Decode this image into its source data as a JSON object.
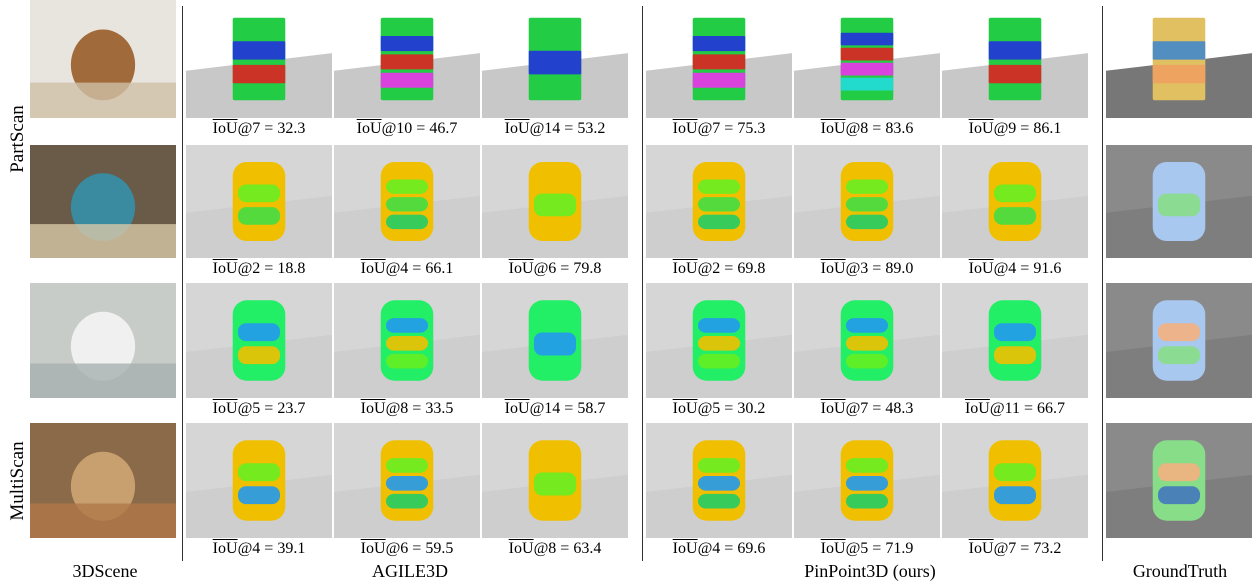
{
  "row_groups": [
    {
      "label": "PartScan"
    },
    {
      "label": "MultiScan"
    }
  ],
  "columns": [
    {
      "label": "3DScene"
    },
    {
      "label": "AGILE3D"
    },
    {
      "label": "PinPoint3D (ours)"
    },
    {
      "label": "GroundTruth"
    }
  ],
  "rows": [
    {
      "captions": [
        {
          "metric": "IoU",
          "rest": "@7 = 32.3"
        },
        {
          "metric": "IoU",
          "rest": "@10 = 46.7"
        },
        {
          "metric": "IoU",
          "rest": "@14 = 53.2"
        },
        {
          "metric": "IoU",
          "rest": "@7 = 75.3"
        },
        {
          "metric": "IoU",
          "rest": "@8 = 83.6"
        },
        {
          "metric": "IoU",
          "rest": "@9 = 86.1"
        }
      ]
    },
    {
      "captions": [
        {
          "metric": "IoU",
          "rest": "@2 = 18.8"
        },
        {
          "metric": "IoU",
          "rest": "@4 = 66.1"
        },
        {
          "metric": "IoU",
          "rest": "@6 = 79.8"
        },
        {
          "metric": "IoU",
          "rest": "@2 = 69.8"
        },
        {
          "metric": "IoU",
          "rest": "@3 = 89.0"
        },
        {
          "metric": "IoU",
          "rest": "@4 = 91.6"
        }
      ]
    },
    {
      "captions": [
        {
          "metric": "IoU",
          "rest": "@5 = 23.7"
        },
        {
          "metric": "IoU",
          "rest": "@8 = 33.5"
        },
        {
          "metric": "IoU",
          "rest": "@14 = 58.7"
        },
        {
          "metric": "IoU",
          "rest": "@5 = 30.2"
        },
        {
          "metric": "IoU",
          "rest": "@7 = 48.3"
        },
        {
          "metric": "IoU",
          "rest": "@11 = 66.7"
        }
      ]
    },
    {
      "captions": [
        {
          "metric": "IoU",
          "rest": "@4 = 39.1"
        },
        {
          "metric": "IoU",
          "rest": "@6 = 59.5"
        },
        {
          "metric": "IoU",
          "rest": "@8 = 63.4"
        },
        {
          "metric": "IoU",
          "rest": "@4 = 69.6"
        },
        {
          "metric": "IoU",
          "rest": "@5 = 71.9"
        },
        {
          "metric": "IoU",
          "rest": "@7 = 73.2"
        }
      ]
    }
  ]
}
